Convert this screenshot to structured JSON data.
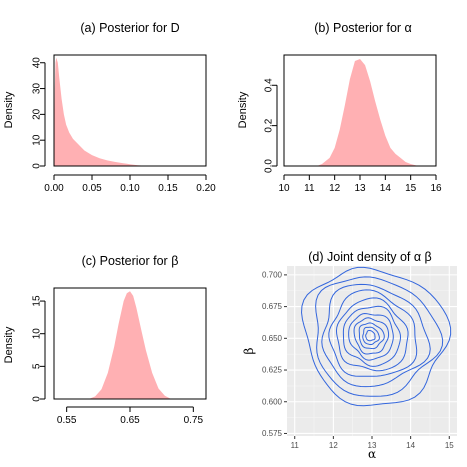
{
  "chart_data": [
    {
      "type": "area",
      "title": "(a) Posterior for D",
      "xlabel": "",
      "ylabel": "Density",
      "xlim": [
        0,
        0.2
      ],
      "ylim": [
        0,
        43
      ],
      "xticks": [
        "0.00",
        "0.05",
        "0.10",
        "0.15",
        "0.20"
      ],
      "yticks": [
        "0",
        "10",
        "20",
        "30",
        "40"
      ],
      "fill_color": "#ffb0b3",
      "x": [
        0.0,
        0.001,
        0.002,
        0.003,
        0.005,
        0.007,
        0.01,
        0.013,
        0.016,
        0.02,
        0.025,
        0.03,
        0.035,
        0.04,
        0.05,
        0.06,
        0.07,
        0.08,
        0.09,
        0.1,
        0.11,
        0.12,
        0.125
      ],
      "values": [
        5,
        30,
        40,
        42,
        40,
        34,
        26,
        20,
        16,
        13,
        10.5,
        9,
        7.5,
        6,
        4.2,
        3,
        2.2,
        1.6,
        1.1,
        0.7,
        0.3,
        0.1,
        0
      ]
    },
    {
      "type": "area",
      "title": "(b) Posterior for α",
      "xlabel": "",
      "ylabel": "Density",
      "xlim": [
        10,
        16
      ],
      "ylim": [
        0,
        0.55
      ],
      "xticks": [
        "10",
        "11",
        "12",
        "13",
        "14",
        "15",
        "16"
      ],
      "yticks": [
        "0.0",
        "0.2",
        "0.4"
      ],
      "fill_color": "#ffb0b3",
      "x": [
        11.3,
        11.5,
        11.8,
        12.0,
        12.2,
        12.4,
        12.6,
        12.8,
        13.0,
        13.2,
        13.4,
        13.6,
        13.8,
        14.0,
        14.2,
        14.4,
        14.6,
        14.8,
        15.0,
        15.3
      ],
      "values": [
        0,
        0.01,
        0.04,
        0.09,
        0.18,
        0.3,
        0.43,
        0.52,
        0.53,
        0.5,
        0.42,
        0.32,
        0.23,
        0.15,
        0.09,
        0.06,
        0.04,
        0.02,
        0.01,
        0
      ]
    },
    {
      "type": "area",
      "title": "(c) Posterior for β",
      "xlabel": "",
      "ylabel": "Density",
      "xlim": [
        0.53,
        0.77
      ],
      "ylim": [
        0,
        17
      ],
      "xticks": [
        "0.55",
        "0.65",
        "0.75"
      ],
      "yticks": [
        "0",
        "5",
        "10",
        "15"
      ],
      "fill_color": "#ffb0b3",
      "x": [
        0.585,
        0.595,
        0.605,
        0.615,
        0.625,
        0.632,
        0.64,
        0.645,
        0.65,
        0.655,
        0.66,
        0.668,
        0.675,
        0.685,
        0.695,
        0.705,
        0.715
      ],
      "values": [
        0,
        0.4,
        1.5,
        4,
        8,
        11.5,
        15,
        16.2,
        16.5,
        15.8,
        14,
        10.5,
        7.5,
        4,
        1.6,
        0.5,
        0
      ]
    },
    {
      "type": "contour",
      "title": "(d) Joint density of α β",
      "xlabel": "α",
      "ylabel": "β",
      "xlim": [
        10.8,
        15.2
      ],
      "ylim": [
        0.573,
        0.707
      ],
      "xticks": [
        "11",
        "12",
        "13",
        "14",
        "15"
      ],
      "yticks": [
        "0.575",
        "0.600",
        "0.625",
        "0.650",
        "0.675",
        "0.700"
      ],
      "line_color": "#3366dd",
      "background": "#ebebeb",
      "center": [
        12.95,
        0.652
      ],
      "levels": [
        {
          "ax": 1.85,
          "by": 0.054
        },
        {
          "ax": 1.6,
          "by": 0.047
        },
        {
          "ax": 1.35,
          "by": 0.04
        },
        {
          "ax": 1.12,
          "by": 0.034
        },
        {
          "ax": 0.92,
          "by": 0.028
        },
        {
          "ax": 0.74,
          "by": 0.023
        },
        {
          "ax": 0.58,
          "by": 0.018
        },
        {
          "ax": 0.44,
          "by": 0.014
        },
        {
          "ax": 0.32,
          "by": 0.01
        },
        {
          "ax": 0.21,
          "by": 0.0068
        },
        {
          "ax": 0.12,
          "by": 0.004
        }
      ]
    }
  ]
}
